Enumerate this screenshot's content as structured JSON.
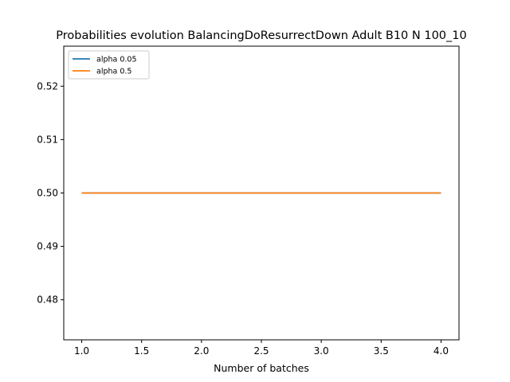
{
  "chart_data": {
    "type": "line",
    "title": "Probabilities evolution BalancingDoResurrectDown Adult B10 N 100_10",
    "xlabel": "Number of batches",
    "ylabel": "",
    "xlim": [
      0.85,
      4.15
    ],
    "ylim": [
      0.4725,
      0.5275
    ],
    "xticks": [
      1.0,
      1.5,
      2.0,
      2.5,
      3.0,
      3.5,
      4.0
    ],
    "xtick_labels": [
      "1.0",
      "1.5",
      "2.0",
      "2.5",
      "3.0",
      "3.5",
      "4.0"
    ],
    "yticks": [
      0.48,
      0.49,
      0.5,
      0.51,
      0.52
    ],
    "ytick_labels": [
      "0.48",
      "0.49",
      "0.50",
      "0.51",
      "0.52"
    ],
    "legend_position": "top-left",
    "grid": false,
    "series": [
      {
        "name": "alpha 0.05",
        "color": "#1f77b4",
        "x": [
          1,
          2,
          3,
          4
        ],
        "y": [
          0.5,
          0.5,
          0.5,
          0.5
        ]
      },
      {
        "name": "alpha 0.5",
        "color": "#ff7f0e",
        "x": [
          1,
          2,
          3,
          4
        ],
        "y": [
          0.5,
          0.5,
          0.5,
          0.5
        ]
      }
    ]
  }
}
